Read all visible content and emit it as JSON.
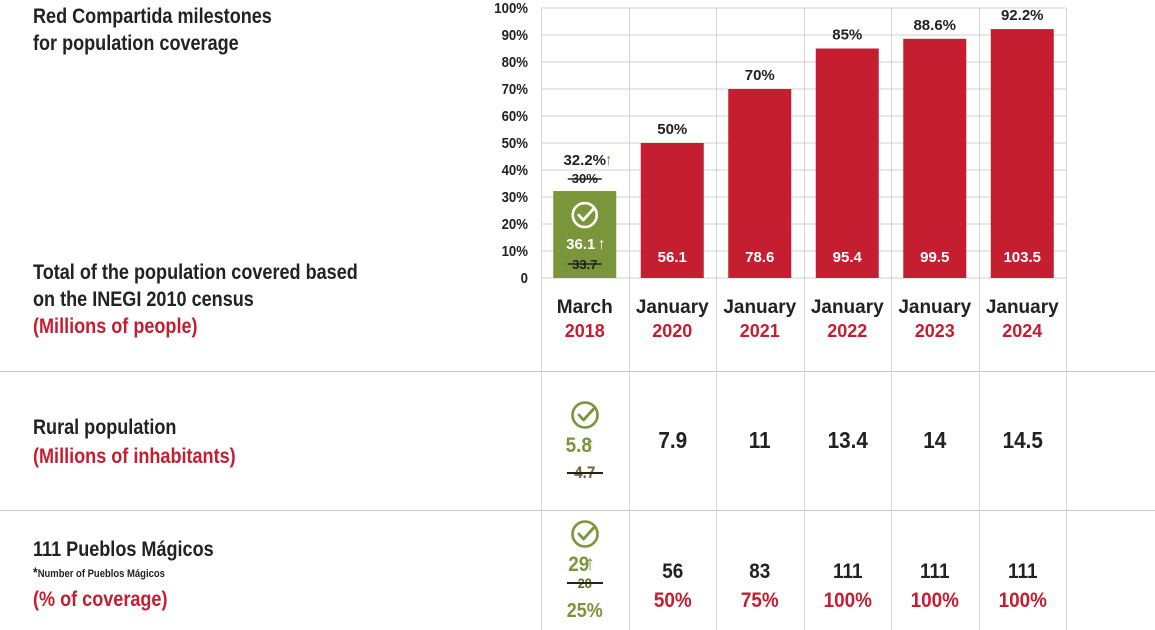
{
  "title": [
    "Red Compartida milestones",
    "for population coverage"
  ],
  "chart_label": [
    "Total of the population covered based",
    "on the INEGI 2010 census"
  ],
  "chart_unit": "(Millions of people)",
  "rural_label": "Rural population",
  "rural_unit": "(Millions of inhabitants)",
  "pueblos_label": "111 Pueblos Mágicos",
  "pueblos_note_star": "*",
  "pueblos_note": "Number of Pueblos Mágicos",
  "pueblos_unit": "(% of coverage)",
  "colors": {
    "red": "#c41e30",
    "green": "#7a953a",
    "dark": "#222222",
    "grid": "#cccccc"
  },
  "chart_data": {
    "type": "bar",
    "categories": [
      "March 2018",
      "January 2020",
      "January 2021",
      "January 2022",
      "January 2023",
      "January 2024"
    ],
    "category_months": [
      "March",
      "January",
      "January",
      "January",
      "January",
      "January"
    ],
    "category_years": [
      "2018",
      "2020",
      "2021",
      "2022",
      "2023",
      "2024"
    ],
    "coverage_percent": [
      32.2,
      50,
      70,
      85,
      88.6,
      92.2
    ],
    "coverage_labels": [
      "32.2%",
      "50%",
      "70%",
      "85%",
      "88.6%",
      "92.2%"
    ],
    "population_millions": [
      "36.1",
      "56.1",
      "78.6",
      "95.4",
      "99.5",
      "103.5"
    ],
    "first_target_percent": "30%",
    "first_target_population": "33.7",
    "up_arrow": "↑",
    "ylim": [
      0,
      100
    ],
    "y_ticks": [
      "0",
      "10%",
      "20%",
      "30%",
      "40%",
      "50%",
      "60%",
      "70%",
      "80%",
      "90%",
      "100%"
    ],
    "bar_colors": [
      "green",
      "red",
      "red",
      "red",
      "red",
      "red"
    ]
  },
  "rural": {
    "first_value": "5.8",
    "first_target": "4.7",
    "values": [
      "7.9",
      "11",
      "13.4",
      "14",
      "14.5"
    ]
  },
  "pueblos": {
    "first_value": "29",
    "first_target": "28",
    "first_percent": "25%",
    "values": [
      "56",
      "83",
      "111",
      "111",
      "111"
    ],
    "percents": [
      "50%",
      "75%",
      "100%",
      "100%",
      "100%"
    ]
  }
}
